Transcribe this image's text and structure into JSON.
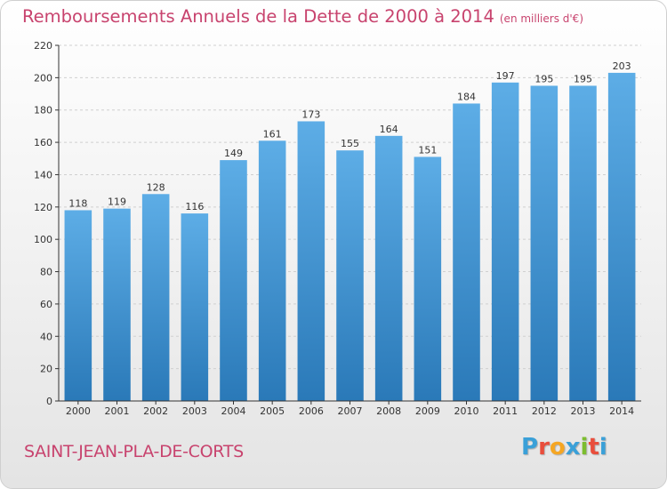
{
  "header": {
    "title": "Remboursements Annuels de la Dette de 2000 à 2014",
    "unit": "(en milliers d'€)"
  },
  "footer": {
    "city": "SAINT-JEAN-PLA-DE-CORTS",
    "logo_letters": [
      "P",
      "r",
      "o",
      "x",
      "i",
      "t",
      "i"
    ],
    "logo_colors": [
      "#3aa0d8",
      "#e94e3c",
      "#f5a623",
      "#3aa0d8",
      "#7cbd2f",
      "#e94e3c",
      "#3aa0d8"
    ]
  },
  "colors": {
    "bar_light": "#5dade6",
    "bar_dark": "#2a79b8",
    "title": "#c8436e",
    "axis": "#333333",
    "grid": "#d0d0d0"
  },
  "chart_data": {
    "type": "bar",
    "title": "Remboursements Annuels de la Dette de 2000 à 2014",
    "xlabel": "",
    "ylabel": "",
    "categories": [
      "2000",
      "2001",
      "2002",
      "2003",
      "2004",
      "2005",
      "2006",
      "2007",
      "2008",
      "2009",
      "2010",
      "2011",
      "2012",
      "2013",
      "2014"
    ],
    "values": [
      118,
      119,
      128,
      116,
      149,
      161,
      173,
      155,
      164,
      151,
      184,
      197,
      195,
      195,
      203
    ],
    "ylim": [
      0,
      220
    ],
    "yticks": [
      0,
      20,
      40,
      60,
      80,
      100,
      120,
      140,
      160,
      180,
      200,
      220
    ],
    "grid": true
  }
}
